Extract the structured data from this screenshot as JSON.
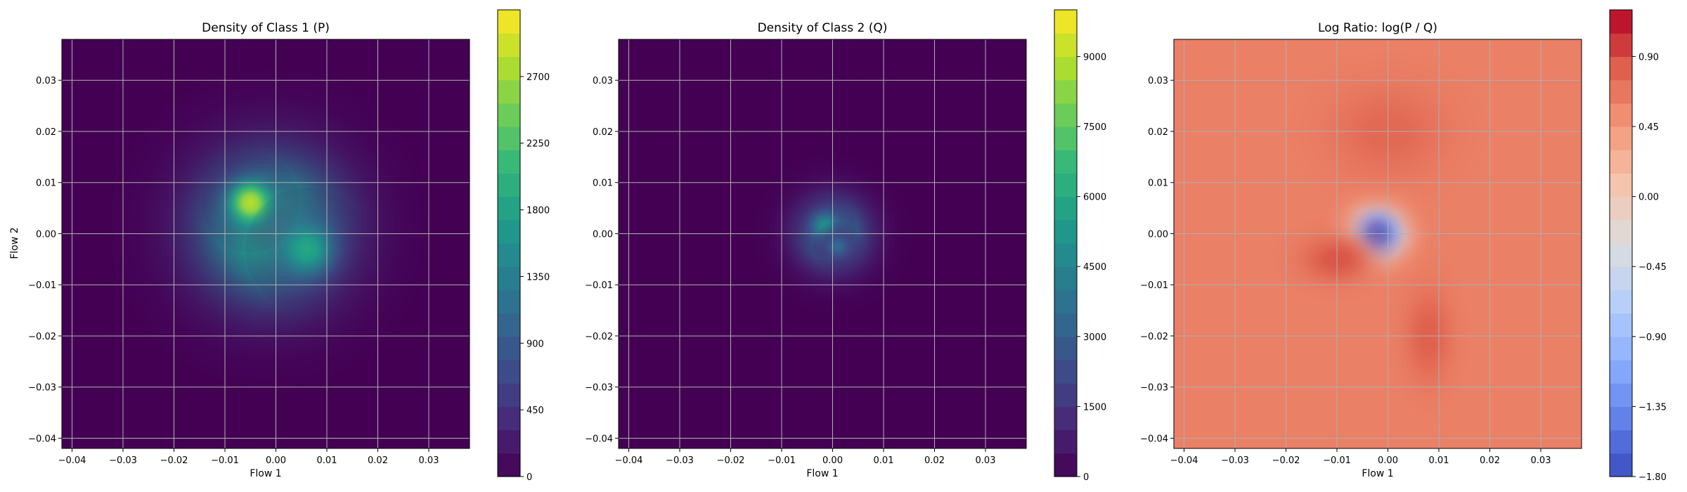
{
  "chart_data": [
    {
      "type": "heatmap",
      "title": "Density of Class 1 (P)",
      "xlabel": "Flow 1",
      "ylabel": "Flow 2",
      "xlim": [
        -0.042,
        0.038
      ],
      "ylim": [
        -0.042,
        0.038
      ],
      "xticks": [
        -0.04,
        -0.03,
        -0.02,
        -0.01,
        0.0,
        0.01,
        0.02,
        0.03
      ],
      "xtick_labels": [
        "−0.04",
        "−0.03",
        "−0.02",
        "−0.01",
        "0.00",
        "0.01",
        "0.02",
        "0.03"
      ],
      "yticks": [
        0.03,
        0.02,
        0.01,
        0.0,
        -0.01,
        -0.02,
        -0.03,
        -0.04
      ],
      "ytick_labels": [
        "0.03",
        "0.02",
        "0.01",
        "0.00",
        "−0.01",
        "−0.02",
        "−0.03",
        "−0.04"
      ],
      "grid": true,
      "colormap": "viridis",
      "colorbar": {
        "range": [
          0,
          3150
        ],
        "ticks": [
          0,
          450,
          900,
          1350,
          1800,
          2250,
          2700
        ],
        "tick_labels": [
          "0",
          "450",
          "900",
          "1350",
          "1800",
          "2250",
          "2700"
        ]
      },
      "blobs": [
        {
          "x": -0.001,
          "y": 0.001,
          "sx": 0.013,
          "sy": 0.013,
          "amp": 0.6
        },
        {
          "x": -0.005,
          "y": 0.006,
          "sx": 0.004,
          "sy": 0.004,
          "amp": 0.9
        },
        {
          "x": 0.006,
          "y": -0.003,
          "sx": 0.005,
          "sy": 0.005,
          "amp": 0.6
        }
      ]
    },
    {
      "type": "heatmap",
      "title": "Density of Class 2 (Q)",
      "xlabel": "Flow 1",
      "ylabel": "",
      "xlim": [
        -0.042,
        0.038
      ],
      "ylim": [
        -0.042,
        0.038
      ],
      "xticks": [
        -0.04,
        -0.03,
        -0.02,
        -0.01,
        0.0,
        0.01,
        0.02,
        0.03
      ],
      "xtick_labels": [
        "−0.04",
        "−0.03",
        "−0.02",
        "−0.01",
        "0.00",
        "0.01",
        "0.02",
        "0.03"
      ],
      "yticks": [
        0.03,
        0.02,
        0.01,
        0.0,
        -0.01,
        -0.02,
        -0.03,
        -0.04
      ],
      "ytick_labels": [
        "0.03",
        "0.02",
        "0.01",
        "0.00",
        "−0.01",
        "−0.02",
        "−0.03",
        "−0.04"
      ],
      "grid": true,
      "colormap": "viridis",
      "colorbar": {
        "range": [
          0,
          10000
        ],
        "ticks": [
          0,
          1500,
          3000,
          4500,
          6000,
          7500,
          9000
        ],
        "tick_labels": [
          "0",
          "1500",
          "3000",
          "4500",
          "6000",
          "7500",
          "9000"
        ]
      },
      "blobs": [
        {
          "x": 0.0,
          "y": 0.0,
          "sx": 0.0065,
          "sy": 0.0065,
          "amp": 0.4
        },
        {
          "x": -0.0015,
          "y": 0.0015,
          "sx": 0.0025,
          "sy": 0.0025,
          "amp": 0.5
        },
        {
          "x": 0.001,
          "y": -0.0025,
          "sx": 0.002,
          "sy": 0.002,
          "amp": 0.35
        }
      ]
    },
    {
      "type": "heatmap",
      "title": "Log Ratio: log(P / Q)",
      "xlabel": "Flow 1",
      "ylabel": "",
      "xlim": [
        -0.042,
        0.038
      ],
      "ylim": [
        -0.042,
        0.038
      ],
      "xticks": [
        -0.04,
        -0.03,
        -0.02,
        -0.01,
        0.0,
        0.01,
        0.02,
        0.03
      ],
      "xtick_labels": [
        "−0.04",
        "−0.03",
        "−0.02",
        "−0.01",
        "0.00",
        "0.01",
        "0.02",
        "0.03"
      ],
      "yticks": [
        0.03,
        0.02,
        0.01,
        0.0,
        -0.01,
        -0.02,
        -0.03,
        -0.04
      ],
      "ytick_labels": [
        "0.03",
        "0.02",
        "0.01",
        "0.00",
        "−0.01",
        "−0.02",
        "−0.03",
        "−0.04"
      ],
      "grid": true,
      "colormap": "coolwarm",
      "colorbar": {
        "range": [
          -1.8,
          1.2
        ],
        "ticks": [
          -1.8,
          -1.35,
          -0.9,
          -0.45,
          0.0,
          0.45,
          0.9
        ],
        "tick_labels": [
          "−1.80",
          "−1.35",
          "−0.90",
          "−0.45",
          "0.00",
          "0.45",
          "0.90"
        ]
      },
      "baseline": 0.62,
      "blobs": [
        {
          "x": -0.002,
          "y": 0.0,
          "sx": 0.0045,
          "sy": 0.0045,
          "amp": -2.3
        },
        {
          "x": -0.01,
          "y": -0.005,
          "sx": 0.006,
          "sy": 0.004,
          "amp": 0.25
        },
        {
          "x": 0.008,
          "y": -0.02,
          "sx": 0.004,
          "sy": 0.008,
          "amp": 0.2
        },
        {
          "x": 0.0,
          "y": 0.02,
          "sx": 0.01,
          "sy": 0.008,
          "amp": 0.15
        }
      ]
    }
  ]
}
